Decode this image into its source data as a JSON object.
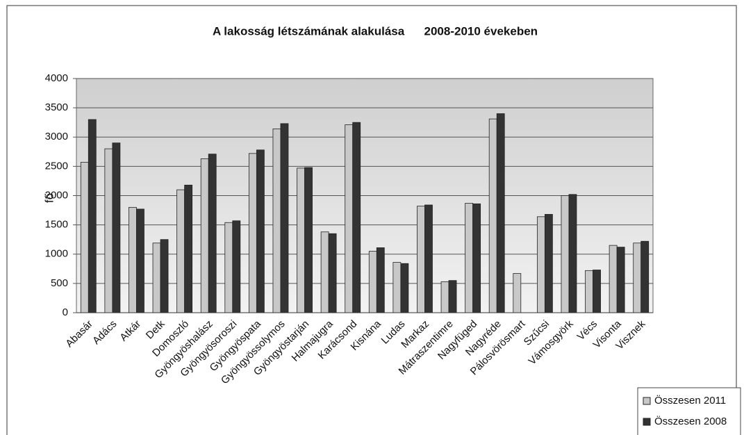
{
  "chart_data": {
    "type": "bar",
    "title": "A lakosság létszámának alakulása      2008-2010 évekeben",
    "y_label": "fő",
    "categories": [
      "Abasár",
      "Adács",
      "Atkár",
      "Detk",
      "Domoszló",
      "Gyöngyöshalász",
      "Gyöngyösoroszi",
      "Gyöngyöspata",
      "Gyöngyössolymos",
      "Gyöngyöstarján",
      "Halmajugra",
      "Karácsond",
      "Kisnána",
      "Ludas",
      "Markaz",
      "Mátraszentimre",
      "Nagyfüged",
      "Nagyréde",
      "Pálosvörösmart",
      "Szűcsi",
      "Vámosgyörk",
      "Vécs",
      "Visonta",
      "Visznek"
    ],
    "series": [
      {
        "name": "Összesen 2011",
        "color": "#c8c8c8",
        "values": [
          2570,
          2800,
          1800,
          1190,
          2100,
          2630,
          1540,
          2720,
          3140,
          2470,
          1380,
          3210,
          1050,
          860,
          1820,
          530,
          1870,
          3310,
          670,
          1640,
          2000,
          720,
          1150,
          1190
        ]
      },
      {
        "name": "Összesen 2008",
        "color": "#333333",
        "values": [
          3300,
          2900,
          1770,
          1250,
          2180,
          2710,
          1570,
          2780,
          3230,
          2480,
          1350,
          3250,
          1110,
          840,
          1840,
          550,
          1860,
          3400,
          null,
          1680,
          2020,
          730,
          1120,
          1220
        ]
      }
    ],
    "ylim": [
      0,
      4000
    ],
    "yticks": [
      0,
      500,
      1000,
      1500,
      2000,
      2500,
      3000,
      3500,
      4000
    ],
    "grid": true,
    "legend": "bottom-right"
  }
}
